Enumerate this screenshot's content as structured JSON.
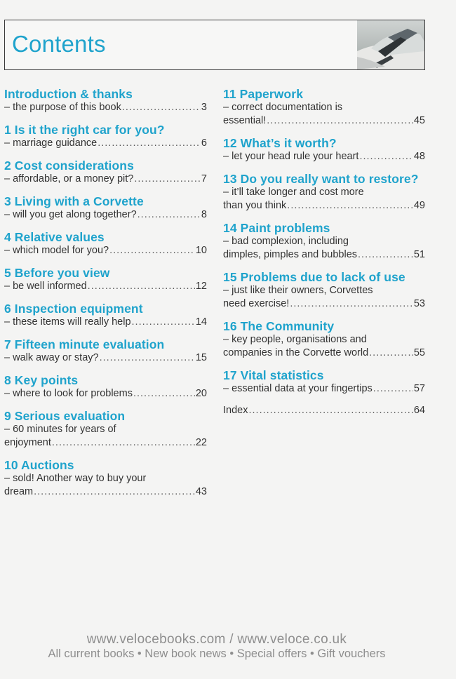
{
  "header": {
    "title": "Contents"
  },
  "left_entries": [
    {
      "title": "Introduction & thanks",
      "lines": [
        "– the purpose of this book"
      ],
      "page": "3"
    },
    {
      "title": "1 Is it the right car for you?",
      "lines": [
        "– marriage guidance"
      ],
      "page": "6"
    },
    {
      "title": "2 Cost considerations",
      "lines": [
        "– affordable, or a money pit?"
      ],
      "page": "7"
    },
    {
      "title": "3 Living with a Corvette",
      "lines": [
        "– will you get along together?"
      ],
      "page": "8"
    },
    {
      "title": "4 Relative values",
      "lines": [
        "– which model for you?"
      ],
      "page": "10"
    },
    {
      "title": "5 Before you view",
      "lines": [
        "– be well informed"
      ],
      "page": "12"
    },
    {
      "title": "6 Inspection equipment",
      "lines": [
        "– these items will really help"
      ],
      "page": "14"
    },
    {
      "title": "7 Fifteen minute evaluation",
      "lines": [
        "– walk away or stay?"
      ],
      "page": "15"
    },
    {
      "title": "8 Key points",
      "lines": [
        "– where to look for problems"
      ],
      "page": "20"
    },
    {
      "title": "9 Serious evaluation",
      "lines": [
        "– 60 minutes for years of",
        "enjoyment"
      ],
      "page": "22"
    },
    {
      "title": "10 Auctions",
      "lines": [
        "– sold! Another way to buy your",
        "dream"
      ],
      "page": "43"
    }
  ],
  "right_entries": [
    {
      "title": "11 Paperwork",
      "lines": [
        "– correct documentation is",
        "essential!"
      ],
      "page": "45"
    },
    {
      "title": "12 What’s it worth?",
      "lines": [
        "– let your head rule your heart"
      ],
      "page": "48"
    },
    {
      "title": "13 Do you really want to restore?",
      "lines": [
        "– it’ll take longer and cost more",
        "than you think"
      ],
      "page": "49"
    },
    {
      "title": "14 Paint problems",
      "lines": [
        "– bad complexion, including",
        "dimples, pimples and bubbles"
      ],
      "page": "51"
    },
    {
      "title": "15 Problems due to lack of use",
      "lines": [
        "– just like their owners, Corvettes",
        "need exercise!"
      ],
      "page": "53"
    },
    {
      "title": "16 The Community",
      "lines": [
        "– key people, organisations and",
        "companies in the Corvette world"
      ],
      "page": "55"
    },
    {
      "title": "17 Vital statistics",
      "lines": [
        "– essential data at your fingertips"
      ],
      "page": "57"
    },
    {
      "title": "",
      "lines": [
        "Index"
      ],
      "page": "64"
    }
  ],
  "footer": {
    "line1": "www.velocebooks.com / www.veloce.co.uk",
    "line2": "All current books • New book news • Special offers • Gift vouchers"
  },
  "colors": {
    "accent": "#1fa3cc",
    "text": "#2b2b2b",
    "footer": "#8e8e8e"
  }
}
